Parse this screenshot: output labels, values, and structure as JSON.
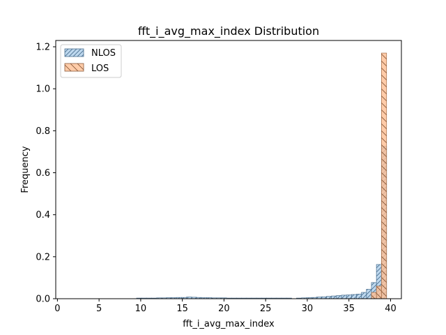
{
  "chart_data": {
    "type": "bar",
    "title": "fft_i_avg_max_index Distribution",
    "xlabel": "fft_i_avg_max_index",
    "ylabel": "Frequency",
    "xlim": [
      -0.2,
      41.3
    ],
    "ylim": [
      0,
      1.23
    ],
    "xticks": [
      0,
      5,
      10,
      15,
      20,
      25,
      30,
      35,
      40
    ],
    "yticks": [
      0.0,
      0.2,
      0.4,
      0.6,
      0.8,
      1.0,
      1.2
    ],
    "grid": false,
    "legend_position": "top-left",
    "bin_width": 0.62,
    "series": [
      {
        "name": "NLOS",
        "color": "#9dc3e6",
        "edge": "#4a6f8f",
        "hatch": "////",
        "bins": [
          {
            "x": 9.5,
            "y": 0.003
          },
          {
            "x": 10.1,
            "y": 0.003
          },
          {
            "x": 10.7,
            "y": 0.003
          },
          {
            "x": 11.3,
            "y": 0.003
          },
          {
            "x": 11.9,
            "y": 0.004
          },
          {
            "x": 12.5,
            "y": 0.004
          },
          {
            "x": 13.1,
            "y": 0.005
          },
          {
            "x": 13.7,
            "y": 0.005
          },
          {
            "x": 14.3,
            "y": 0.006
          },
          {
            "x": 14.9,
            "y": 0.006
          },
          {
            "x": 15.5,
            "y": 0.008
          },
          {
            "x": 16.1,
            "y": 0.007
          },
          {
            "x": 16.7,
            "y": 0.006
          },
          {
            "x": 17.3,
            "y": 0.005
          },
          {
            "x": 17.9,
            "y": 0.005
          },
          {
            "x": 18.5,
            "y": 0.004
          },
          {
            "x": 19.1,
            "y": 0.004
          },
          {
            "x": 19.7,
            "y": 0.004
          },
          {
            "x": 20.3,
            "y": 0.003
          },
          {
            "x": 20.9,
            "y": 0.003
          },
          {
            "x": 21.5,
            "y": 0.003
          },
          {
            "x": 22.1,
            "y": 0.003
          },
          {
            "x": 22.7,
            "y": 0.003
          },
          {
            "x": 23.3,
            "y": 0.003
          },
          {
            "x": 23.9,
            "y": 0.003
          },
          {
            "x": 24.5,
            "y": 0.003
          },
          {
            "x": 25.1,
            "y": 0.003
          },
          {
            "x": 25.7,
            "y": 0.003
          },
          {
            "x": 26.3,
            "y": 0.003
          },
          {
            "x": 26.9,
            "y": 0.003
          },
          {
            "x": 27.5,
            "y": 0.003
          },
          {
            "x": 28.7,
            "y": 0.003
          },
          {
            "x": 29.3,
            "y": 0.004
          },
          {
            "x": 29.9,
            "y": 0.005
          },
          {
            "x": 30.5,
            "y": 0.006
          },
          {
            "x": 31.1,
            "y": 0.008
          },
          {
            "x": 31.7,
            "y": 0.009
          },
          {
            "x": 32.3,
            "y": 0.011
          },
          {
            "x": 32.9,
            "y": 0.013
          },
          {
            "x": 33.5,
            "y": 0.015
          },
          {
            "x": 34.1,
            "y": 0.017
          },
          {
            "x": 34.7,
            "y": 0.018
          },
          {
            "x": 35.3,
            "y": 0.02
          },
          {
            "x": 35.9,
            "y": 0.022
          },
          {
            "x": 36.5,
            "y": 0.03
          },
          {
            "x": 37.1,
            "y": 0.045
          },
          {
            "x": 37.7,
            "y": 0.077
          },
          {
            "x": 38.3,
            "y": 0.163
          },
          {
            "x": 38.9,
            "y": 0.726
          }
        ]
      },
      {
        "name": "LOS",
        "color": "#ffb98a",
        "edge": "#a06a45",
        "hatch": "\\\\",
        "bins": [
          {
            "x": 37.7,
            "y": 0.03
          },
          {
            "x": 38.3,
            "y": 0.06
          },
          {
            "x": 38.9,
            "y": 1.17
          }
        ]
      }
    ]
  }
}
